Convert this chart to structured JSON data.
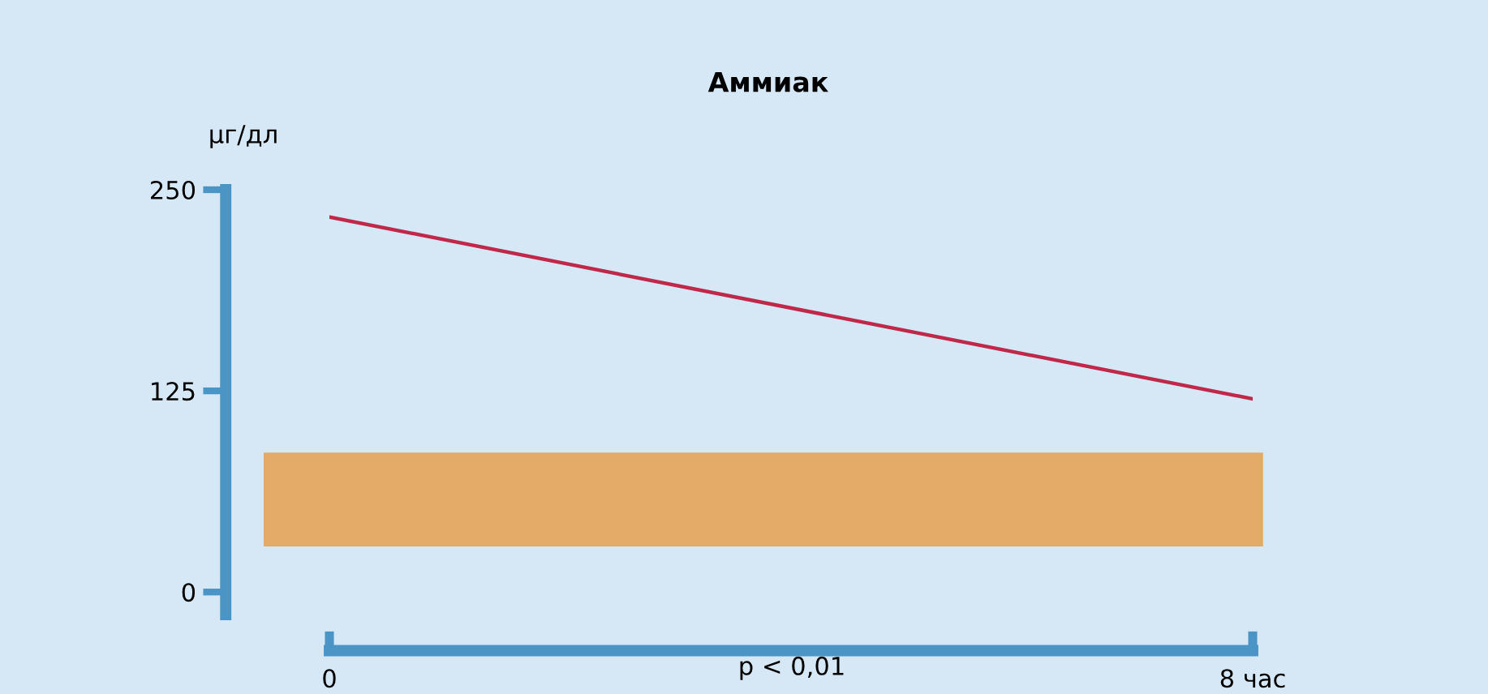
{
  "chart_data": {
    "type": "line",
    "title": "Аммиак",
    "ylabel": "μг/дл",
    "x": [
      0,
      8
    ],
    "series": [
      {
        "color": "#c0284a",
        "values": [
          233,
          120
        ]
      }
    ],
    "xlim": [
      0,
      8
    ],
    "ylim": [
      -14,
      250
    ],
    "xticks": [
      0,
      {
        "value": 8,
        "label": "8 час"
      }
    ],
    "yticks": [
      0,
      125,
      250
    ],
    "bands": [
      {
        "axis": "y",
        "from": 29,
        "to": 86,
        "color": "#e4aa68"
      }
    ],
    "annotations": [
      "p < 0,01"
    ],
    "grid": false,
    "marker": "none",
    "line_style": "solid"
  }
}
